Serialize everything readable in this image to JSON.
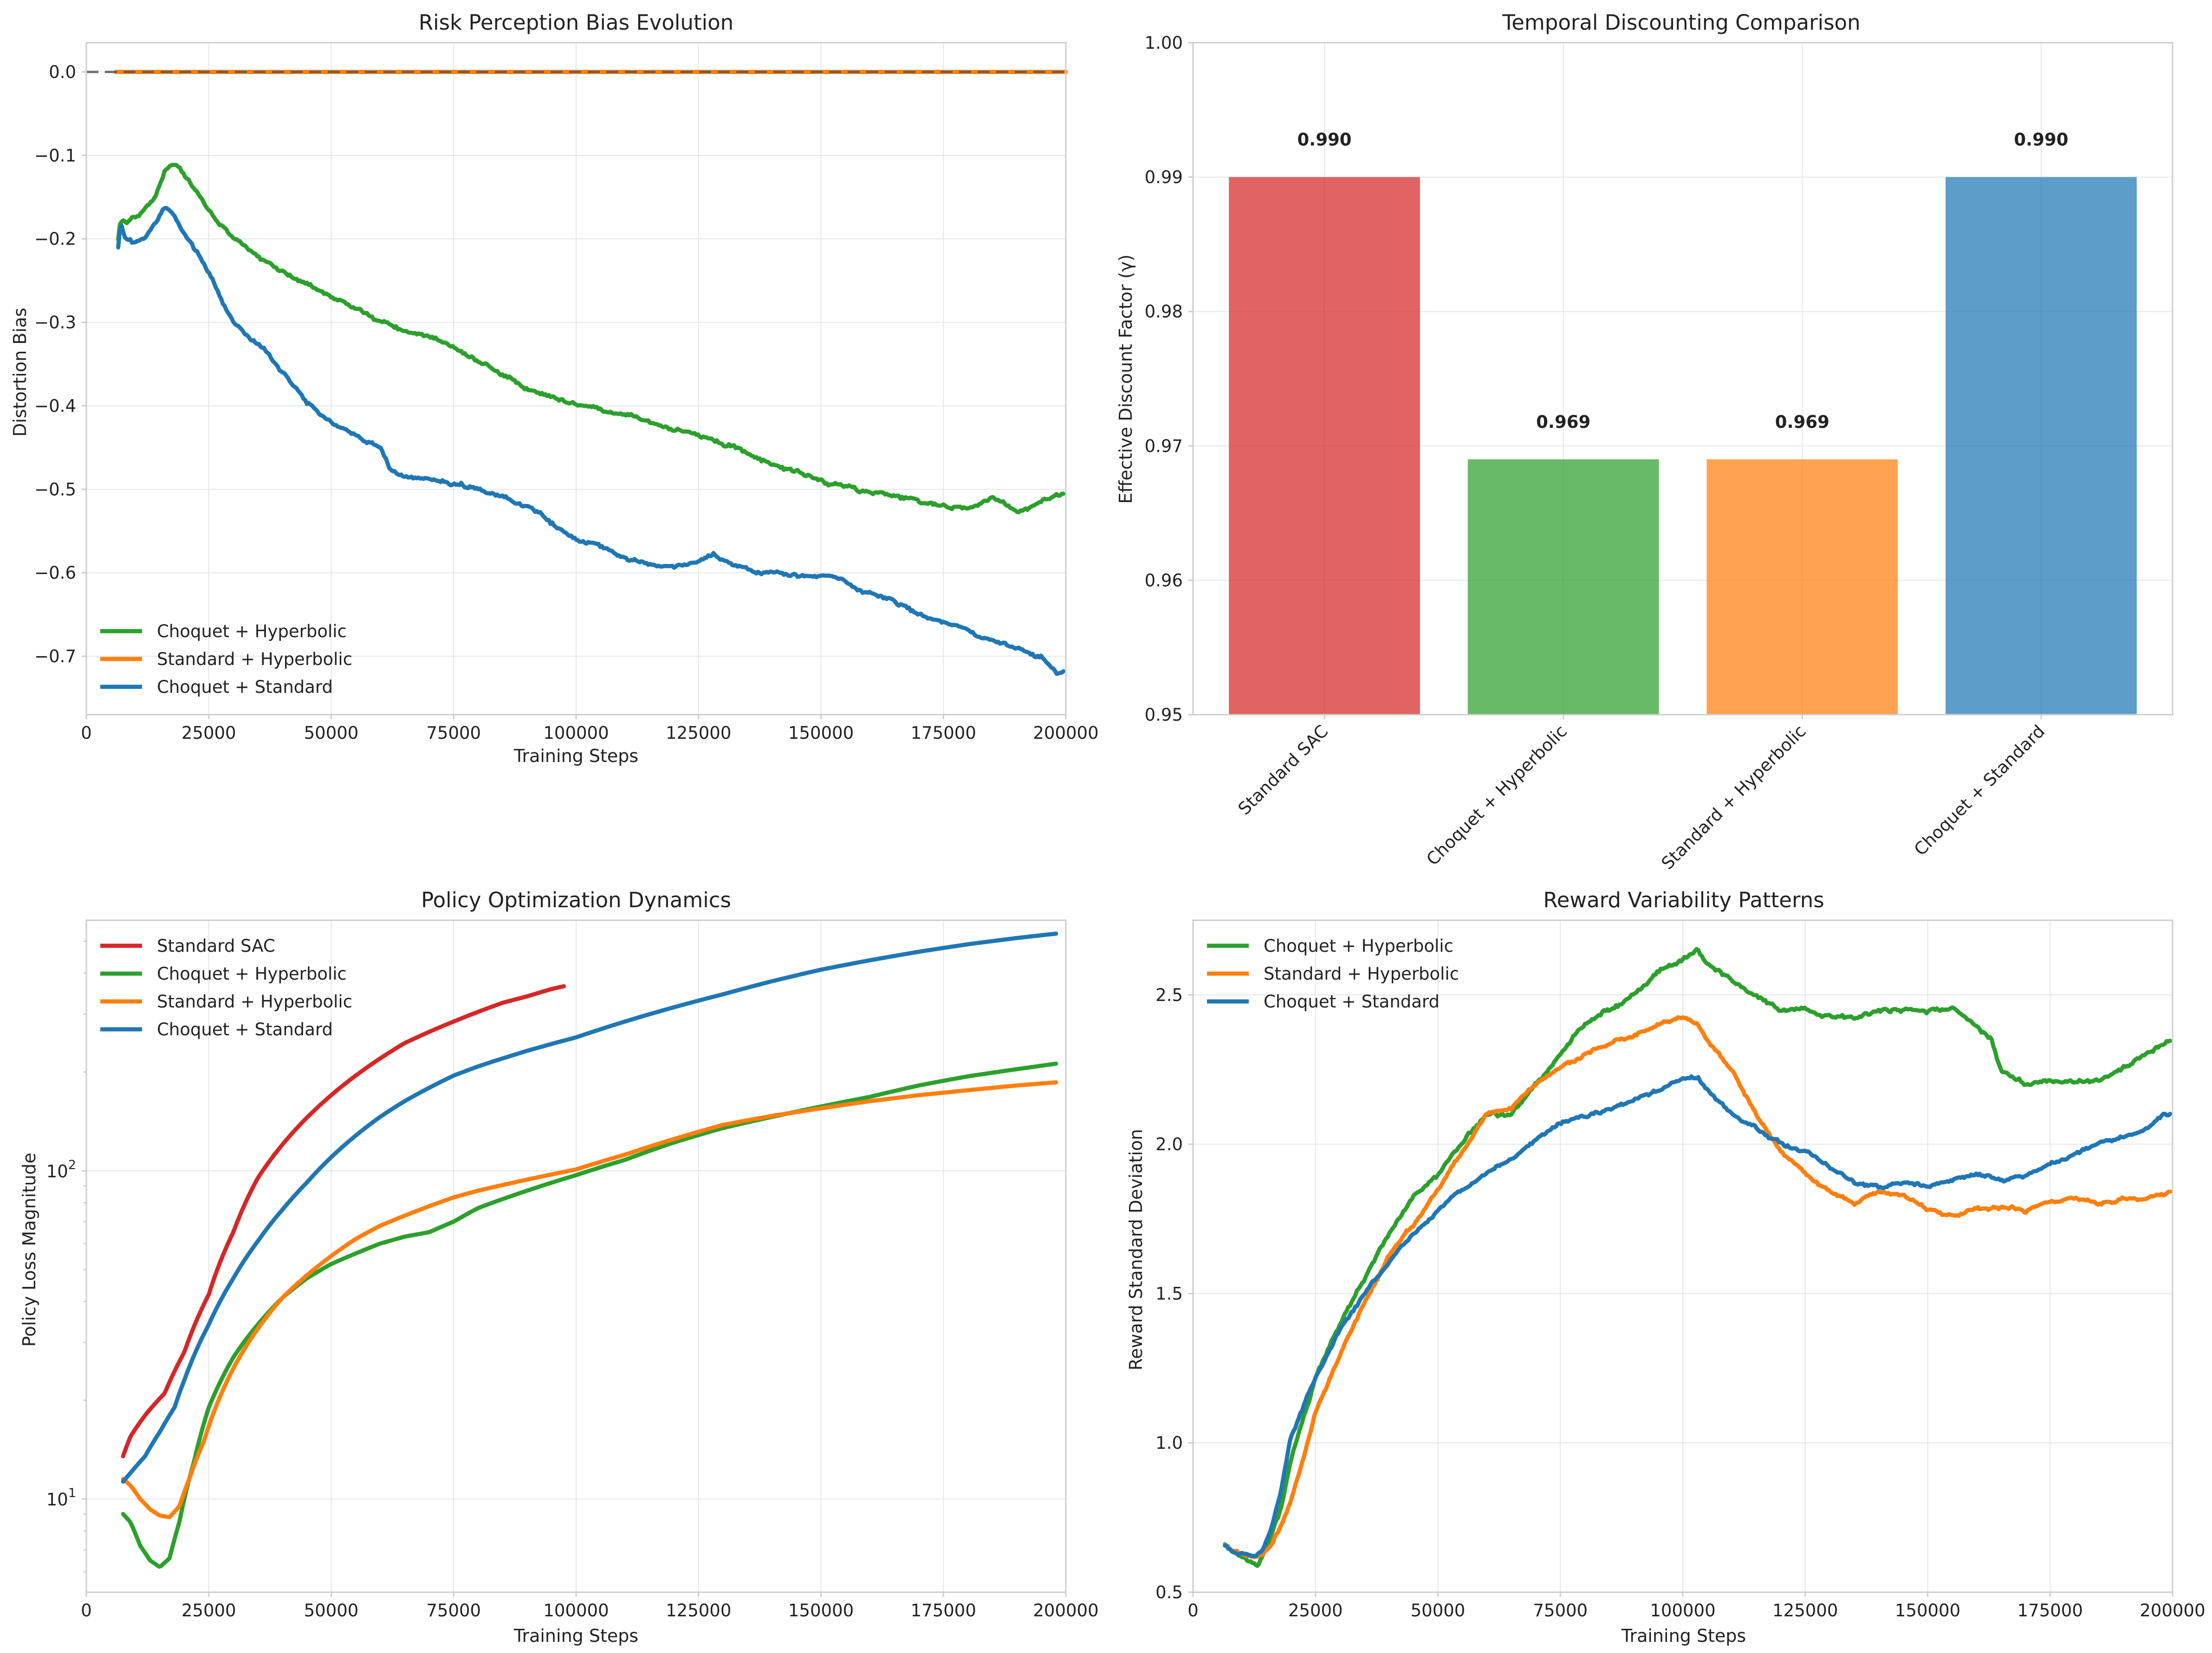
{
  "colors": {
    "standard_sac": "#d62728",
    "choquet_hyperbolic": "#2ca02c",
    "standard_hyperbolic": "#ff7f0e",
    "choquet_standard": "#1f77b4",
    "baseline": "#555555"
  },
  "chart_data": [
    {
      "id": "risk-bias",
      "type": "line",
      "title": "Risk Perception Bias Evolution",
      "xlabel": "Training Steps",
      "ylabel": "Distortion Bias",
      "xlim": [
        0,
        200000
      ],
      "ylim": [
        -0.77,
        0.035
      ],
      "xticks": [
        0,
        25000,
        50000,
        75000,
        100000,
        125000,
        150000,
        175000,
        200000
      ],
      "yticks": [
        -0.7,
        -0.6,
        -0.5,
        -0.4,
        -0.3,
        -0.2,
        -0.1,
        0.0
      ],
      "ytick_labels": [
        "−0.7",
        "−0.6",
        "−0.5",
        "−0.4",
        "−0.3",
        "−0.2",
        "−0.1",
        "0.0"
      ],
      "grid": true,
      "legend": "lower-left",
      "reference_lines": [
        {
          "y": 0.0,
          "style": "dashed",
          "color": "#555555"
        }
      ],
      "series": [
        {
          "name": "Choquet + Hyperbolic",
          "color": "#2ca02c",
          "noise": 0.004,
          "x": [
            6500,
            7000,
            8000,
            10000,
            14000,
            16000,
            17500,
            19000,
            22000,
            26000,
            30000,
            40000,
            50000,
            52000,
            60000,
            65000,
            70000,
            80000,
            90000,
            95000,
            100000,
            105000,
            110000,
            120000,
            130000,
            140000,
            150000,
            160000,
            170000,
            175000,
            180000,
            185000,
            190000,
            195000,
            198000,
            199500
          ],
          "y": [
            -0.2,
            -0.175,
            -0.18,
            -0.175,
            -0.15,
            -0.12,
            -0.11,
            -0.115,
            -0.14,
            -0.175,
            -0.2,
            -0.24,
            -0.27,
            -0.275,
            -0.3,
            -0.31,
            -0.315,
            -0.345,
            -0.38,
            -0.39,
            -0.4,
            -0.405,
            -0.41,
            -0.425,
            -0.445,
            -0.47,
            -0.49,
            -0.505,
            -0.515,
            -0.52,
            -0.525,
            -0.51,
            -0.525,
            -0.515,
            -0.51,
            -0.505
          ]
        },
        {
          "name": "Standard + Hyperbolic",
          "color": "#ff7f0e",
          "noise": 0,
          "x": [
            6000,
            200000
          ],
          "y": [
            0.0,
            0.0
          ]
        },
        {
          "name": "Choquet + Standard",
          "color": "#1f77b4",
          "noise": 0.004,
          "x": [
            6500,
            7000,
            8000,
            10000,
            12000,
            14000,
            16000,
            18000,
            20000,
            25000,
            30000,
            34000,
            36000,
            40000,
            45000,
            50000,
            55000,
            60000,
            62000,
            65000,
            70000,
            80000,
            90000,
            95000,
            100000,
            105000,
            110000,
            115000,
            120000,
            125000,
            128000,
            132000,
            140000,
            150000,
            155000,
            160000,
            163000,
            170000,
            180000,
            190000,
            195000,
            198000,
            199500
          ],
          "y": [
            -0.21,
            -0.18,
            -0.2,
            -0.205,
            -0.2,
            -0.18,
            -0.16,
            -0.17,
            -0.19,
            -0.24,
            -0.3,
            -0.32,
            -0.33,
            -0.36,
            -0.395,
            -0.42,
            -0.435,
            -0.45,
            -0.475,
            -0.485,
            -0.49,
            -0.5,
            -0.52,
            -0.54,
            -0.56,
            -0.57,
            -0.58,
            -0.59,
            -0.59,
            -0.585,
            -0.575,
            -0.59,
            -0.6,
            -0.605,
            -0.61,
            -0.625,
            -0.63,
            -0.65,
            -0.67,
            -0.69,
            -0.7,
            -0.72,
            -0.72
          ]
        }
      ]
    },
    {
      "id": "temporal-discount",
      "type": "bar",
      "title": "Temporal Discounting Comparison",
      "xlabel": "",
      "ylabel": "Effective Discount Factor (γ)",
      "ylim": [
        0.95,
        1.0
      ],
      "yticks": [
        0.95,
        0.96,
        0.97,
        0.98,
        0.99,
        1.0
      ],
      "ytick_labels": [
        "0.95",
        "0.96",
        "0.97",
        "0.98",
        "0.99",
        "1.00"
      ],
      "categories": [
        "Standard SAC",
        "Choquet + Hyperbolic",
        "Standard + Hyperbolic",
        "Choquet + Standard"
      ],
      "values": [
        0.99,
        0.969,
        0.969,
        0.99
      ],
      "value_labels": [
        "0.990",
        "0.969",
        "0.969",
        "0.990"
      ],
      "bar_colors": [
        "#d62728",
        "#2ca02c",
        "#ff7f0e",
        "#1f77b4"
      ],
      "grid": true
    },
    {
      "id": "policy-loss",
      "type": "line",
      "title": "Policy Optimization Dynamics",
      "xlabel": "Training Steps",
      "ylabel": "Policy Loss Magnitude",
      "yscale": "log",
      "xlim": [
        0,
        200000
      ],
      "ylim": [
        5.2,
        580
      ],
      "xticks": [
        0,
        25000,
        50000,
        75000,
        100000,
        125000,
        150000,
        175000,
        200000
      ],
      "yticks_major": [
        10,
        100
      ],
      "grid": true,
      "legend": "upper-left",
      "series": [
        {
          "name": "Standard SAC",
          "color": "#d62728",
          "noise": 0,
          "x": [
            7500,
            9000,
            12000,
            16000,
            20000,
            25000,
            30000,
            35000,
            40000,
            45000,
            50000,
            55000,
            60000,
            65000,
            70000,
            75000,
            80000,
            85000,
            90000,
            95000,
            97500
          ],
          "y": [
            13.5,
            15.5,
            18.0,
            21.0,
            28.0,
            42.0,
            65.0,
            95.0,
            120.0,
            145.0,
            170.0,
            195.0,
            220.0,
            245.0,
            265.0,
            285.0,
            305.0,
            325.0,
            340.0,
            358.0,
            365.0
          ]
        },
        {
          "name": "Choquet + Hyperbolic",
          "color": "#2ca02c",
          "noise": 0,
          "x": [
            7500,
            9000,
            11000,
            13000,
            15000,
            17000,
            19000,
            22000,
            25000,
            30000,
            35000,
            40000,
            45000,
            50000,
            55000,
            60000,
            65000,
            70000,
            75000,
            80000,
            90000,
            100000,
            110000,
            120000,
            130000,
            140000,
            150000,
            160000,
            170000,
            180000,
            190000,
            198000
          ],
          "y": [
            9.0,
            8.5,
            7.2,
            6.5,
            6.2,
            6.6,
            8.5,
            13.0,
            19.0,
            27.0,
            34.0,
            41.0,
            47.0,
            52.0,
            56.0,
            60.0,
            63.0,
            65.0,
            70.0,
            77.0,
            87.0,
            97.0,
            108.0,
            122.0,
            135.0,
            146.0,
            157.0,
            168.0,
            182.0,
            194.0,
            204.0,
            212.0
          ]
        },
        {
          "name": "Standard + Hyperbolic",
          "color": "#ff7f0e",
          "noise": 0,
          "x": [
            7500,
            9000,
            11000,
            13000,
            15000,
            17000,
            19000,
            21000,
            24000,
            27000,
            30000,
            35000,
            40000,
            45000,
            50000,
            55000,
            60000,
            65000,
            70000,
            75000,
            80000,
            90000,
            100000,
            110000,
            120000,
            130000,
            140000,
            150000,
            160000,
            170000,
            180000,
            190000,
            198000
          ],
          "y": [
            11.5,
            11.0,
            10.0,
            9.3,
            8.9,
            8.8,
            9.5,
            11.5,
            15.0,
            20.0,
            25.0,
            33.0,
            41.0,
            48.0,
            55.0,
            62.0,
            68.0,
            73.0,
            78.0,
            83.0,
            87.0,
            94.0,
            101.0,
            112.0,
            125.0,
            138.0,
            147.0,
            155.0,
            163.0,
            170.0,
            176.0,
            182.0,
            186.0
          ]
        },
        {
          "name": "Choquet + Standard",
          "color": "#1f77b4",
          "noise": 0,
          "x": [
            7500,
            9000,
            12000,
            15000,
            18000,
            20000,
            25000,
            30000,
            35000,
            40000,
            45000,
            50000,
            55000,
            60000,
            65000,
            70000,
            75000,
            80000,
            90000,
            100000,
            110000,
            120000,
            130000,
            140000,
            150000,
            160000,
            170000,
            180000,
            190000,
            198000
          ],
          "y": [
            11.3,
            12.0,
            13.5,
            16.0,
            19.0,
            23.0,
            34.0,
            47.0,
            61.0,
            76.0,
            92.0,
            110.0,
            128.0,
            146.0,
            163.0,
            179.0,
            195.0,
            208.0,
            232.0,
            255.0,
            285.0,
            315.0,
            345.0,
            378.0,
            410.0,
            438.0,
            465.0,
            490.0,
            512.0,
            528.0
          ]
        }
      ]
    },
    {
      "id": "reward-variability",
      "type": "line",
      "title": "Reward Variability Patterns",
      "xlabel": "Training Steps",
      "ylabel": "Reward Standard Deviation",
      "xlim": [
        0,
        200000
      ],
      "ylim": [
        0.5,
        2.75
      ],
      "xticks": [
        0,
        25000,
        50000,
        75000,
        100000,
        125000,
        150000,
        175000,
        200000
      ],
      "yticks": [
        0.5,
        1.0,
        1.5,
        2.0,
        2.5
      ],
      "ytick_labels": [
        "0.5",
        "1.0",
        "1.5",
        "2.0",
        "2.5"
      ],
      "grid": true,
      "legend": "upper-left",
      "series": [
        {
          "name": "Choquet + Hyperbolic",
          "color": "#2ca02c",
          "noise": 0.012,
          "x": [
            6500,
            8000,
            10000,
            12000,
            13000,
            15000,
            18000,
            20000,
            25000,
            30000,
            35000,
            40000,
            45000,
            50000,
            55000,
            60000,
            65000,
            70000,
            75000,
            80000,
            85000,
            90000,
            95000,
            100000,
            103000,
            105000,
            110000,
            115000,
            120000,
            125000,
            130000,
            135000,
            140000,
            145000,
            150000,
            155000,
            160000,
            163000,
            165000,
            170000,
            175000,
            180000,
            185000,
            190000,
            195000,
            198000,
            199500
          ],
          "y": [
            0.66,
            0.64,
            0.63,
            0.6,
            0.59,
            0.65,
            0.78,
            0.95,
            1.22,
            1.4,
            1.55,
            1.7,
            1.83,
            1.9,
            2.0,
            2.1,
            2.1,
            2.2,
            2.3,
            2.4,
            2.45,
            2.5,
            2.58,
            2.62,
            2.65,
            2.6,
            2.55,
            2.5,
            2.45,
            2.45,
            2.43,
            2.42,
            2.45,
            2.45,
            2.44,
            2.45,
            2.4,
            2.35,
            2.25,
            2.2,
            2.22,
            2.2,
            2.22,
            2.25,
            2.3,
            2.33,
            2.35
          ]
        },
        {
          "name": "Standard + Hyperbolic",
          "color": "#ff7f0e",
          "noise": 0.01,
          "x": [
            6500,
            8000,
            10000,
            12000,
            14000,
            16000,
            18000,
            20000,
            22000,
            25000,
            30000,
            35000,
            40000,
            45000,
            50000,
            55000,
            60000,
            65000,
            70000,
            75000,
            80000,
            85000,
            90000,
            95000,
            100000,
            103000,
            105000,
            110000,
            115000,
            120000,
            125000,
            130000,
            135000,
            140000,
            145000,
            150000,
            155000,
            160000,
            165000,
            170000,
            175000,
            180000,
            185000,
            190000,
            195000,
            198000,
            199500
          ],
          "y": [
            0.66,
            0.64,
            0.63,
            0.62,
            0.63,
            0.66,
            0.72,
            0.8,
            0.92,
            1.1,
            1.3,
            1.47,
            1.62,
            1.73,
            1.85,
            1.97,
            2.1,
            2.12,
            2.2,
            2.25,
            2.3,
            2.34,
            2.36,
            2.4,
            2.42,
            2.4,
            2.35,
            2.25,
            2.1,
            1.97,
            1.9,
            1.84,
            1.8,
            1.84,
            1.83,
            1.78,
            1.76,
            1.78,
            1.79,
            1.78,
            1.81,
            1.82,
            1.8,
            1.82,
            1.82,
            1.83,
            1.84
          ]
        },
        {
          "name": "Choquet + Standard",
          "color": "#1f77b4",
          "noise": 0.01,
          "x": [
            6500,
            8000,
            10000,
            12000,
            14000,
            16000,
            18000,
            20000,
            25000,
            30000,
            35000,
            40000,
            45000,
            50000,
            55000,
            60000,
            65000,
            70000,
            75000,
            80000,
            85000,
            90000,
            95000,
            100000,
            103000,
            105000,
            110000,
            115000,
            120000,
            125000,
            130000,
            135000,
            140000,
            145000,
            150000,
            155000,
            160000,
            165000,
            170000,
            175000,
            180000,
            185000,
            190000,
            195000,
            198000,
            199500
          ],
          "y": [
            0.66,
            0.64,
            0.63,
            0.62,
            0.64,
            0.72,
            0.85,
            1.02,
            1.22,
            1.38,
            1.5,
            1.6,
            1.7,
            1.78,
            1.85,
            1.9,
            1.95,
            2.02,
            2.07,
            2.1,
            2.12,
            2.15,
            2.18,
            2.22,
            2.22,
            2.18,
            2.1,
            2.05,
            2.0,
            1.98,
            1.92,
            1.87,
            1.86,
            1.87,
            1.86,
            1.88,
            1.9,
            1.88,
            1.9,
            1.93,
            1.97,
            2.0,
            2.02,
            2.05,
            2.1,
            2.1
          ]
        }
      ]
    }
  ]
}
